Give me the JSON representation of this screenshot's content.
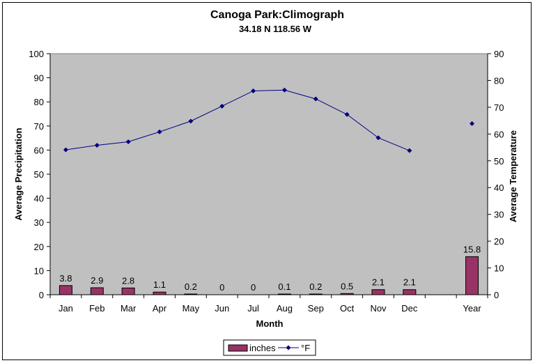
{
  "chart_data": {
    "type": "bar",
    "title": "Canoga Park:Climograph",
    "subtitle": "34.18 N  118.56 W",
    "xlabel": "Month",
    "ylabel_left": "Average Precipitation",
    "ylabel_right": "Average Temperature",
    "categories": [
      "Jan",
      "Feb",
      "Mar",
      "Apr",
      "May",
      "Jun",
      "Jul",
      "Aug",
      "Sep",
      "Oct",
      "Nov",
      "Dec",
      "",
      "Year"
    ],
    "y_left": {
      "min": 0,
      "max": 100,
      "step": 10
    },
    "y_right": {
      "min": 0,
      "max": 90,
      "step": 10
    },
    "grid": false,
    "legend_position": "bottom",
    "plot_background": "#c0c0c0",
    "series": [
      {
        "name": "inches",
        "type": "bar",
        "axis": "left",
        "color": "#993366",
        "values": [
          3.8,
          2.9,
          2.8,
          1.1,
          0.2,
          0,
          0,
          0.1,
          0.2,
          0.5,
          2.1,
          2.1,
          null,
          15.8
        ],
        "labels": [
          "3.8",
          "2.9",
          "2.8",
          "1.1",
          "0.2",
          "0",
          "0",
          "0.1",
          "0.2",
          "0.5",
          "2.1",
          "2.1",
          "",
          "15.8"
        ]
      },
      {
        "name": "°F",
        "type": "line",
        "axis": "right",
        "color": "#000080",
        "values": [
          54.1,
          55.8,
          57.1,
          60.8,
          64.8,
          70.4,
          76.1,
          76.4,
          73.1,
          67.3,
          58.6,
          53.8,
          null,
          63.9
        ]
      }
    ]
  }
}
